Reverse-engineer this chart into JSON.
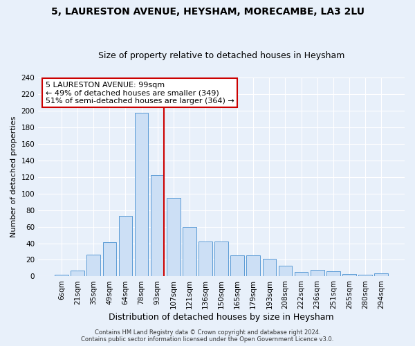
{
  "title1": "5, LAURESTON AVENUE, HEYSHAM, MORECAMBE, LA3 2LU",
  "title2": "Size of property relative to detached houses in Heysham",
  "xlabel": "Distribution of detached houses by size in Heysham",
  "ylabel": "Number of detached properties",
  "categories": [
    "6sqm",
    "21sqm",
    "35sqm",
    "49sqm",
    "64sqm",
    "78sqm",
    "93sqm",
    "107sqm",
    "121sqm",
    "136sqm",
    "150sqm",
    "165sqm",
    "179sqm",
    "193sqm",
    "208sqm",
    "222sqm",
    "236sqm",
    "251sqm",
    "265sqm",
    "280sqm",
    "294sqm"
  ],
  "values": [
    2,
    7,
    26,
    41,
    73,
    197,
    122,
    95,
    60,
    42,
    42,
    25,
    25,
    21,
    13,
    5,
    8,
    6,
    3,
    2,
    4
  ],
  "bar_color": "#ccdff5",
  "bar_edge_color": "#5b9bd5",
  "vline_x_idx": 6,
  "vline_color": "#cc0000",
  "annotation_text": "5 LAURESTON AVENUE: 99sqm\n← 49% of detached houses are smaller (349)\n51% of semi-detached houses are larger (364) →",
  "annotation_box_color": "#ffffff",
  "annotation_box_edge": "#cc0000",
  "footer": "Contains HM Land Registry data © Crown copyright and database right 2024.\nContains public sector information licensed under the Open Government Licence v3.0.",
  "ylim": [
    0,
    240
  ],
  "bg_color": "#e8f0fa",
  "grid_color": "#ffffff",
  "title1_fontsize": 10,
  "title2_fontsize": 9,
  "xlabel_fontsize": 9,
  "ylabel_fontsize": 8,
  "tick_fontsize": 7.5,
  "annot_fontsize": 8,
  "footer_fontsize": 6
}
